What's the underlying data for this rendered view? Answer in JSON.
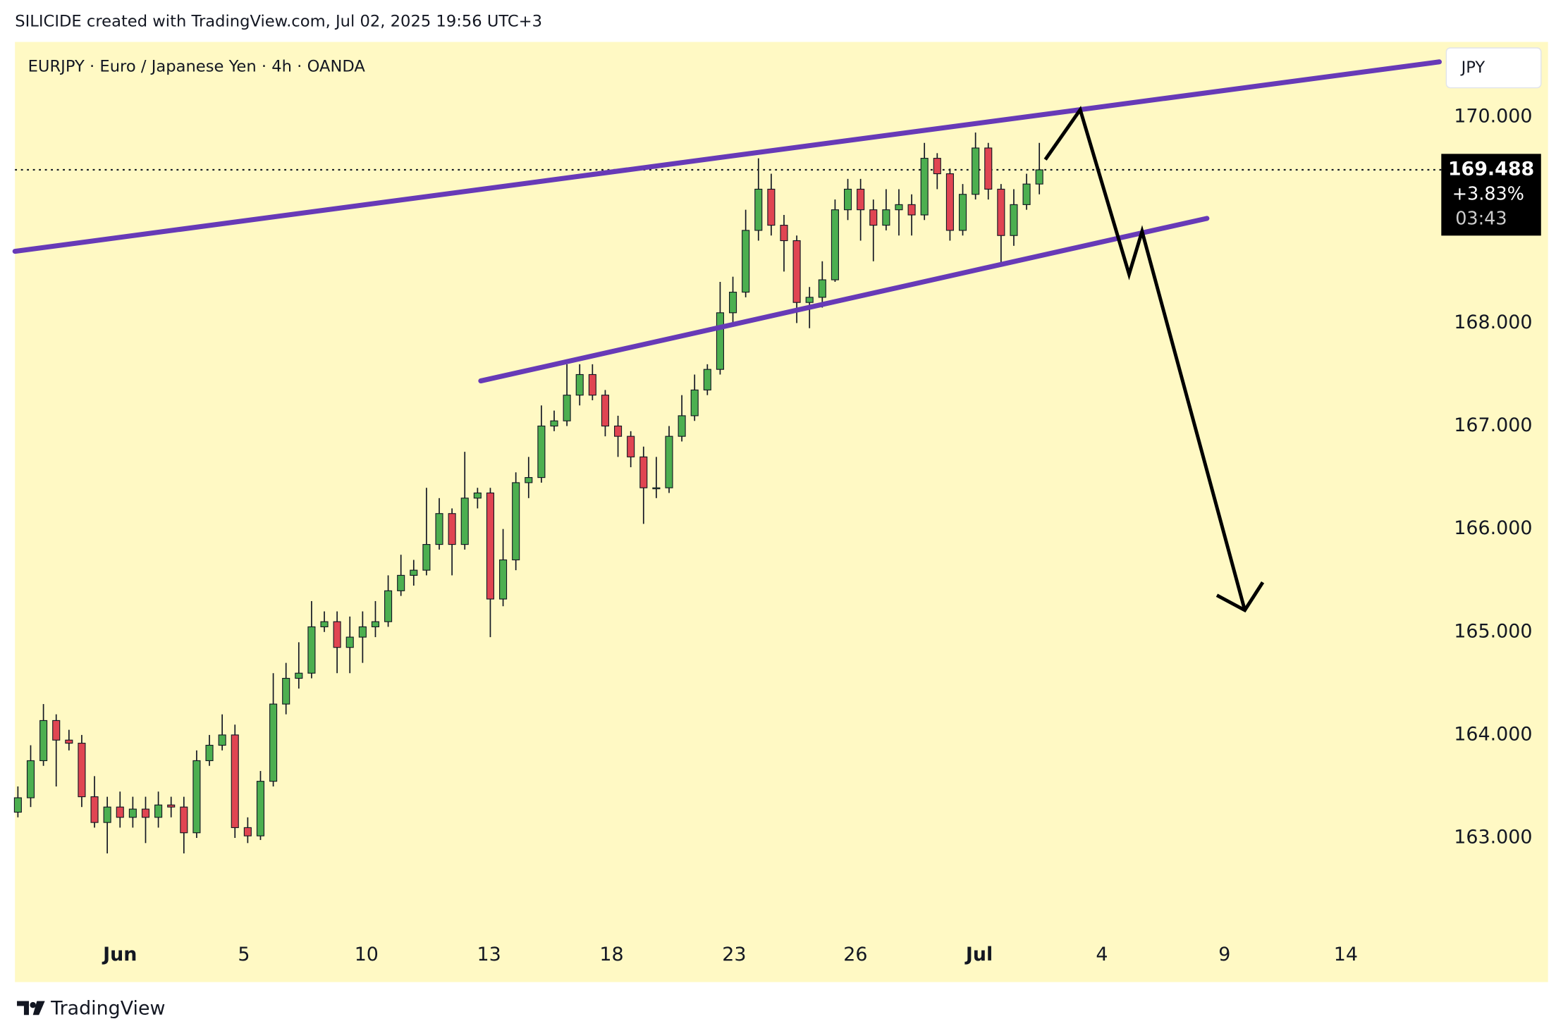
{
  "chart_data": {
    "type": "candlestick",
    "attribution": "SILICIDE created with TradingView.com, Jul 02, 2025 19:56 UTC+3",
    "title": "EURJPY · Euro / Japanese Yen · 4h · OANDA",
    "currency": "JPY",
    "brand": "TradingView",
    "price_change": "+3.83%",
    "countdown": "03:43",
    "up_color": "#4caf50",
    "down_color": "#e04552",
    "open": [
      163.25,
      163.39,
      163.75,
      164.14,
      163.95,
      163.92,
      163.4,
      163.15,
      163.3,
      163.2,
      163.28,
      163.2,
      163.32,
      163.3,
      163.05,
      163.75,
      163.9,
      164.0,
      163.1,
      163.02,
      163.55,
      164.3,
      164.55,
      164.6,
      165.05,
      165.1,
      164.85,
      164.95,
      165.05,
      165.1,
      165.4,
      165.55,
      165.6,
      165.85,
      166.15,
      165.85,
      166.3,
      166.35,
      165.32,
      165.7,
      166.45,
      166.5,
      167.0,
      167.05,
      167.3,
      167.5,
      167.3,
      167.0,
      166.9,
      166.7,
      166.4,
      166.4,
      166.9,
      167.1,
      167.35,
      167.55,
      168.1,
      168.3,
      168.9,
      169.3,
      168.95,
      168.8,
      168.2,
      168.25,
      168.42,
      169.1,
      169.3,
      169.1,
      168.95,
      169.1,
      169.15,
      169.05,
      169.6,
      169.45,
      168.9,
      169.25,
      169.7,
      169.3,
      168.85,
      169.15,
      169.35
    ],
    "high": [
      163.5,
      163.9,
      164.3,
      164.2,
      164.05,
      164.0,
      163.6,
      163.4,
      163.45,
      163.4,
      163.4,
      163.45,
      163.4,
      163.4,
      163.85,
      164.0,
      164.2,
      164.1,
      163.2,
      163.65,
      164.6,
      164.7,
      164.9,
      165.3,
      165.2,
      165.2,
      165.15,
      165.2,
      165.3,
      165.55,
      165.75,
      165.7,
      166.4,
      166.3,
      166.2,
      166.75,
      166.4,
      166.4,
      166.0,
      166.55,
      166.7,
      167.2,
      167.15,
      167.6,
      167.6,
      167.6,
      167.35,
      167.1,
      166.95,
      166.8,
      166.7,
      167.0,
      167.3,
      167.5,
      167.6,
      168.4,
      168.45,
      169.1,
      169.6,
      169.45,
      169.05,
      168.85,
      168.35,
      168.6,
      169.2,
      169.4,
      169.4,
      169.2,
      169.3,
      169.3,
      169.25,
      169.75,
      169.65,
      169.5,
      169.35,
      169.85,
      169.75,
      169.35,
      169.3,
      169.45,
      169.75
    ],
    "low": [
      163.2,
      163.3,
      163.7,
      163.5,
      163.85,
      163.3,
      163.1,
      162.85,
      163.1,
      163.1,
      162.95,
      163.1,
      163.2,
      162.85,
      163.0,
      163.7,
      163.85,
      163.0,
      162.95,
      162.98,
      163.5,
      164.2,
      164.45,
      164.55,
      165.0,
      164.6,
      164.6,
      164.7,
      164.95,
      165.05,
      165.35,
      165.45,
      165.55,
      165.8,
      165.55,
      165.8,
      166.2,
      164.95,
      165.25,
      165.6,
      166.3,
      166.45,
      166.95,
      167.0,
      167.2,
      167.25,
      166.9,
      166.7,
      166.6,
      166.05,
      166.3,
      166.35,
      166.85,
      167.05,
      167.3,
      167.5,
      168.0,
      168.25,
      168.8,
      168.85,
      168.5,
      168.0,
      167.95,
      168.15,
      168.4,
      169.0,
      168.8,
      168.6,
      168.9,
      168.85,
      168.85,
      169.0,
      169.3,
      168.8,
      168.85,
      169.2,
      169.2,
      168.55,
      168.75,
      169.1,
      169.25
    ],
    "close": [
      163.39,
      163.75,
      164.14,
      163.95,
      163.92,
      163.4,
      163.15,
      163.3,
      163.2,
      163.28,
      163.2,
      163.32,
      163.3,
      163.05,
      163.75,
      163.9,
      164.0,
      163.1,
      163.02,
      163.55,
      164.3,
      164.55,
      164.6,
      165.05,
      165.1,
      164.85,
      164.95,
      165.05,
      165.1,
      165.4,
      165.55,
      165.6,
      165.85,
      166.15,
      165.85,
      166.3,
      166.35,
      165.32,
      165.7,
      166.45,
      166.5,
      167.0,
      167.05,
      167.3,
      167.5,
      167.3,
      167.0,
      166.9,
      166.7,
      166.4,
      166.4,
      166.9,
      167.1,
      167.35,
      167.55,
      168.1,
      168.3,
      168.9,
      169.3,
      168.95,
      168.8,
      168.2,
      168.25,
      168.42,
      169.1,
      169.3,
      169.1,
      168.95,
      169.1,
      169.15,
      169.05,
      169.6,
      169.45,
      168.9,
      169.25,
      169.7,
      169.3,
      168.85,
      169.15,
      169.35,
      169.488
    ],
    "xlim": [
      -0.23,
      111.09
    ],
    "xticks": [
      {
        "value": 8.0,
        "label": "Jun"
      },
      {
        "value": 17.7,
        "label": "5"
      },
      {
        "value": 27.3,
        "label": "10"
      },
      {
        "value": 36.9,
        "label": "13"
      },
      {
        "value": 46.5,
        "label": "18"
      },
      {
        "value": 56.1,
        "label": "23"
      },
      {
        "value": 65.6,
        "label": "26"
      },
      {
        "value": 75.3,
        "label": "Jul"
      },
      {
        "value": 84.9,
        "label": "4"
      },
      {
        "value": 94.5,
        "label": "9"
      },
      {
        "value": 104.0,
        "label": "14"
      }
    ],
    "ylim": [
      161.6,
      170.73
    ],
    "yticks": [
      {
        "value": 163,
        "label": "163.000"
      },
      {
        "value": 164,
        "label": "164.000"
      },
      {
        "value": 165,
        "label": "165.000"
      },
      {
        "value": 166,
        "label": "166.000"
      },
      {
        "value": 167,
        "label": "167.000"
      },
      {
        "value": 168,
        "label": "168.000"
      },
      {
        "value": 170,
        "label": "170.000"
      }
    ]
  }
}
